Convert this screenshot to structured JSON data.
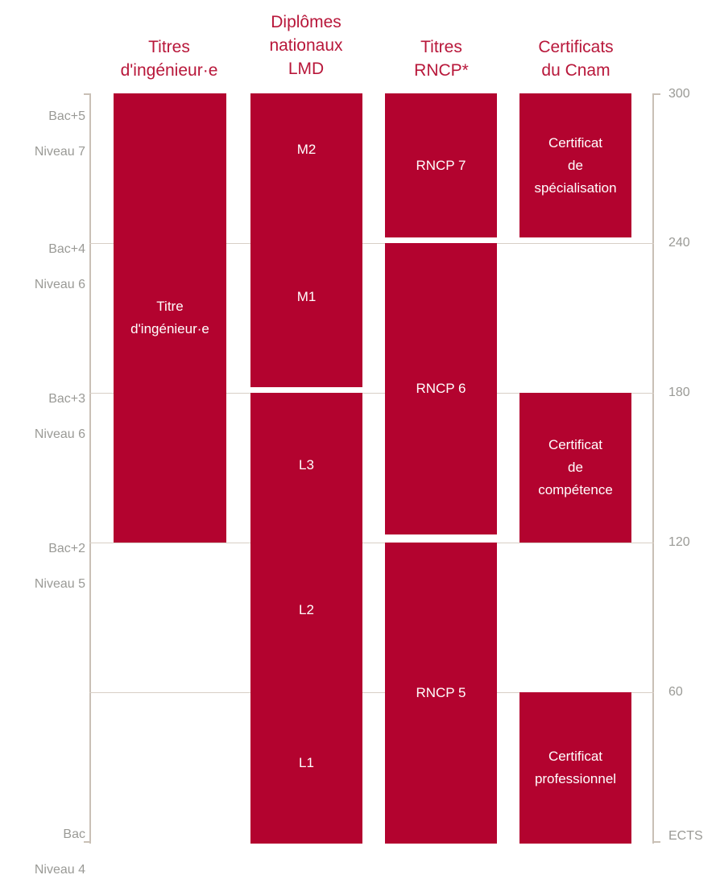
{
  "columns": [
    {
      "id": "ingenieur",
      "title": "Titres\nd'ingénieur·e"
    },
    {
      "id": "lmd",
      "title": "Diplômes\nnationaux\nLMD"
    },
    {
      "id": "rncp",
      "title": "Titres\nRNCP*"
    },
    {
      "id": "cnam",
      "title": "Certificats\ndu Cnam"
    }
  ],
  "levels": [
    {
      "bac": "Bac+5",
      "niveau": "Niveau 7",
      "ects": "300"
    },
    {
      "bac": "Bac+4",
      "niveau": "Niveau 6",
      "ects": "240"
    },
    {
      "bac": "Bac+3",
      "niveau": "Niveau 6",
      "ects": "180"
    },
    {
      "bac": "Bac+2",
      "niveau": "Niveau 5",
      "ects": "120"
    },
    {
      "bac": "",
      "niveau": "",
      "ects": "60"
    },
    {
      "bac": "Bac",
      "niveau": "Niveau 4",
      "ects": "ECTS"
    }
  ],
  "blocks": {
    "titre_ingenieur": "Titre\nd'ingénieur·e",
    "m2": "M2",
    "m1": "M1",
    "l3": "L3",
    "l2": "L2",
    "l1": "L1",
    "rncp7": "RNCP 7",
    "rncp6": "RNCP 6",
    "rncp5": "RNCP 5",
    "cert_specialisation": "Certificat\nde\nspécialisation",
    "cert_competence": "Certificat\nde\ncompétence",
    "cert_professionnel": "Certificat\nprofessionnel"
  },
  "colors": {
    "block": "#b3032f",
    "heading": "#b8173a",
    "axis_text": "#9a9a96",
    "gridline": "#d8cfc6"
  }
}
